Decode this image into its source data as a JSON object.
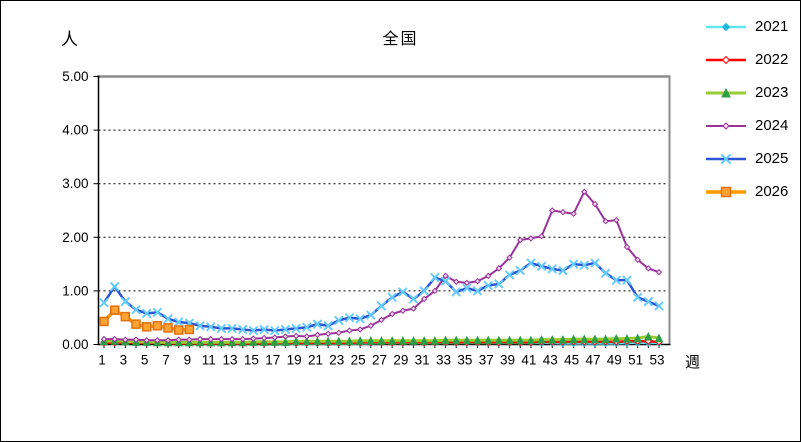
{
  "figure": {
    "background": "#FFFFFF",
    "border_color": "#000000"
  },
  "chart_data": {
    "type": "line",
    "title": "全国",
    "ylabel": "人",
    "xlabel": "週",
    "x_range": [
      1,
      53
    ],
    "ylim": [
      0,
      5
    ],
    "grid": "horizontal-dashed",
    "legend_position": "right",
    "frame_top_right_color": "#8C8C8C",
    "axis_color": "#000000",
    "ytick_labels": [
      "0.00",
      "1.00",
      "2.00",
      "3.00",
      "4.00",
      "5.00"
    ],
    "xticks": [
      1,
      3,
      5,
      7,
      9,
      11,
      13,
      15,
      17,
      19,
      21,
      23,
      25,
      27,
      29,
      31,
      33,
      35,
      37,
      39,
      41,
      43,
      45,
      47,
      49,
      51,
      53
    ],
    "series": [
      {
        "name": "2021",
        "color": "#63E6F2",
        "marker": "diamond",
        "marker_color": "#1FB9D8",
        "marker_fill": "#1FB9D8",
        "marker_size": 3,
        "line_width": 2.5,
        "start_week": 1,
        "values": [
          0.05,
          0.06,
          0.05,
          0.04,
          0.04,
          0.03,
          0.03,
          0.03,
          0.02,
          0.02,
          0.02,
          0.02,
          0.02,
          0.02,
          0.02,
          0.02,
          0.02,
          0.02,
          0.02,
          0.02,
          0.02,
          0.02,
          0.02,
          0.02,
          0.02,
          0.02,
          0.03,
          0.03,
          0.03,
          0.03,
          0.03,
          0.03,
          0.03,
          0.03,
          0.03,
          0.03,
          0.03,
          0.03,
          0.03,
          0.03,
          0.03,
          0.03,
          0.03,
          0.02,
          0.02,
          0.02,
          0.02,
          0.02,
          0.02,
          0.03,
          0.03,
          0.03,
          0.03
        ]
      },
      {
        "name": "2022",
        "color": "#FF0000",
        "marker": "open-diamond",
        "marker_color": "#FF0000",
        "marker_fill": "#FFECEC",
        "marker_size": 3,
        "line_width": 2.5,
        "start_week": 1,
        "values": [
          0.03,
          0.04,
          0.04,
          0.03,
          0.03,
          0.03,
          0.02,
          0.02,
          0.02,
          0.02,
          0.02,
          0.02,
          0.02,
          0.02,
          0.02,
          0.02,
          0.03,
          0.03,
          0.03,
          0.03,
          0.03,
          0.03,
          0.03,
          0.03,
          0.04,
          0.04,
          0.04,
          0.04,
          0.04,
          0.04,
          0.04,
          0.04,
          0.04,
          0.04,
          0.04,
          0.04,
          0.04,
          0.04,
          0.04,
          0.04,
          0.04,
          0.05,
          0.05,
          0.05,
          0.05,
          0.05,
          0.05,
          0.05,
          0.05,
          0.06,
          0.06,
          0.06,
          0.05
        ]
      },
      {
        "name": "2023",
        "color": "#99CC33",
        "marker": "triangle",
        "marker_color": "#2E9E45",
        "marker_fill": "#2E9E45",
        "marker_size": 3.5,
        "line_width": 3,
        "start_week": 1,
        "values": [
          0.06,
          0.07,
          0.06,
          0.05,
          0.05,
          0.04,
          0.04,
          0.04,
          0.04,
          0.04,
          0.04,
          0.04,
          0.04,
          0.04,
          0.05,
          0.05,
          0.05,
          0.05,
          0.06,
          0.06,
          0.06,
          0.06,
          0.06,
          0.06,
          0.07,
          0.07,
          0.07,
          0.07,
          0.07,
          0.07,
          0.07,
          0.07,
          0.08,
          0.08,
          0.08,
          0.08,
          0.08,
          0.08,
          0.08,
          0.08,
          0.08,
          0.09,
          0.09,
          0.09,
          0.1,
          0.1,
          0.1,
          0.1,
          0.11,
          0.11,
          0.12,
          0.15,
          0.12
        ]
      },
      {
        "name": "2024",
        "color": "#993399",
        "marker": "open-diamond",
        "marker_color": "#993399",
        "marker_fill": "#F2DBF2",
        "marker_size": 2.5,
        "line_width": 2,
        "start_week": 1,
        "values": [
          0.1,
          0.1,
          0.09,
          0.09,
          0.08,
          0.08,
          0.08,
          0.09,
          0.09,
          0.1,
          0.1,
          0.1,
          0.1,
          0.1,
          0.11,
          0.12,
          0.13,
          0.15,
          0.16,
          0.15,
          0.18,
          0.2,
          0.22,
          0.26,
          0.28,
          0.35,
          0.46,
          0.57,
          0.63,
          0.67,
          0.85,
          1.0,
          1.28,
          1.17,
          1.15,
          1.18,
          1.28,
          1.42,
          1.62,
          1.95,
          1.98,
          2.02,
          2.5,
          2.47,
          2.44,
          2.85,
          2.62,
          2.3,
          2.32,
          1.82,
          1.58,
          1.42,
          1.35
        ]
      },
      {
        "name": "2025",
        "color": "#2E55D4",
        "marker": "x",
        "marker_color": "#66CCFF",
        "marker_fill": "#66CCFF",
        "marker_size": 3.5,
        "line_width": 2.5,
        "start_week": 1,
        "values": [
          0.78,
          1.08,
          0.8,
          0.65,
          0.58,
          0.6,
          0.48,
          0.42,
          0.4,
          0.35,
          0.33,
          0.3,
          0.3,
          0.28,
          0.26,
          0.28,
          0.26,
          0.28,
          0.3,
          0.32,
          0.38,
          0.35,
          0.45,
          0.5,
          0.48,
          0.55,
          0.72,
          0.88,
          0.98,
          0.85,
          1.0,
          1.25,
          1.18,
          0.98,
          1.05,
          1.0,
          1.1,
          1.13,
          1.3,
          1.38,
          1.52,
          1.46,
          1.41,
          1.38,
          1.5,
          1.48,
          1.52,
          1.33,
          1.2,
          1.2,
          0.88,
          0.8,
          0.72
        ]
      },
      {
        "name": "2026",
        "color": "#FF9900",
        "marker": "square",
        "marker_color": "#E07010",
        "marker_fill": "#FFA333",
        "marker_size": 4,
        "line_width": 3.5,
        "start_week": 1,
        "values": [
          0.43,
          0.64,
          0.52,
          0.38,
          0.33,
          0.35,
          0.31,
          0.27,
          0.28
        ]
      }
    ]
  }
}
